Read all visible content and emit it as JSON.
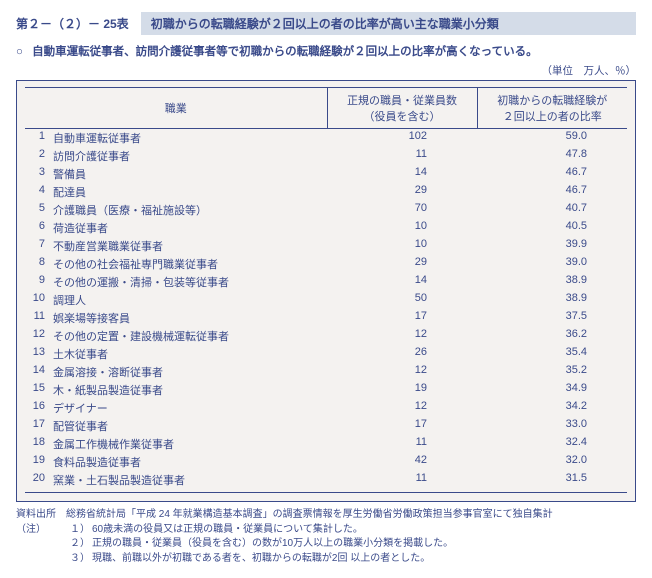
{
  "header": {
    "table_number": "第２－（２）－ 25表",
    "title": "初職からの転職経験が２回以上の者の比率が高い主な職業小分類"
  },
  "summary": "自動車運転従事者、訪問介護従事者等で初職からの転職経験が２回以上の比率が高くなっている。",
  "unit": "（単位　万人、％）",
  "columns": {
    "occupation": "職業",
    "count": "正規の職員・従業員数\n（役員を含む）",
    "ratio": "初職からの転職経験が\n２回以上の者の比率"
  },
  "rows": [
    {
      "rank": "1",
      "occ": "自動車運転従事者",
      "count": "102",
      "ratio": "59.0"
    },
    {
      "rank": "2",
      "occ": "訪問介護従事者",
      "count": "11",
      "ratio": "47.8"
    },
    {
      "rank": "3",
      "occ": "警備員",
      "count": "14",
      "ratio": "46.7"
    },
    {
      "rank": "4",
      "occ": "配達員",
      "count": "29",
      "ratio": "46.7"
    },
    {
      "rank": "5",
      "occ": "介護職員（医療・福祉施設等）",
      "count": "70",
      "ratio": "40.7"
    },
    {
      "rank": "6",
      "occ": "荷造従事者",
      "count": "10",
      "ratio": "40.5"
    },
    {
      "rank": "7",
      "occ": "不動産営業職業従事者",
      "count": "10",
      "ratio": "39.9"
    },
    {
      "rank": "8",
      "occ": "その他の社会福祉専門職業従事者",
      "count": "29",
      "ratio": "39.0"
    },
    {
      "rank": "9",
      "occ": "その他の運搬・清掃・包装等従事者",
      "count": "14",
      "ratio": "38.9"
    },
    {
      "rank": "10",
      "occ": "調理人",
      "count": "50",
      "ratio": "38.9"
    },
    {
      "rank": "11",
      "occ": "娯楽場等接客員",
      "count": "17",
      "ratio": "37.5"
    },
    {
      "rank": "12",
      "occ": "その他の定置・建設機械運転従事者",
      "count": "12",
      "ratio": "36.2"
    },
    {
      "rank": "13",
      "occ": "土木従事者",
      "count": "26",
      "ratio": "35.4"
    },
    {
      "rank": "14",
      "occ": "金属溶接・溶断従事者",
      "count": "12",
      "ratio": "35.2"
    },
    {
      "rank": "15",
      "occ": "木・紙製品製造従事者",
      "count": "19",
      "ratio": "34.9"
    },
    {
      "rank": "16",
      "occ": "デザイナー",
      "count": "12",
      "ratio": "34.2"
    },
    {
      "rank": "17",
      "occ": "配管従事者",
      "count": "17",
      "ratio": "33.0"
    },
    {
      "rank": "18",
      "occ": "金属工作機械作業従事者",
      "count": "11",
      "ratio": "32.4"
    },
    {
      "rank": "19",
      "occ": "食料品製造従事者",
      "count": "42",
      "ratio": "32.0"
    },
    {
      "rank": "20",
      "occ": "窯業・土石製品製造従事者",
      "count": "11",
      "ratio": "31.5"
    }
  ],
  "notes": {
    "source_label": "資料出所",
    "source_text": "総務省統計局「平成 24 年就業構造基本調査」の調査票情報を厚生労働省労働政策担当参事官室にて独自集計",
    "note_label": "（注）",
    "items": [
      "60歳未満の役員又は正規の職員・従業員について集計した。",
      "正規の職員・従業員（役員を含む）の数が10万人以上の職業小分類を掲載した。",
      "現職、前職以外が初職である者を、初職からの転職が2回 以上の者とした。"
    ]
  }
}
